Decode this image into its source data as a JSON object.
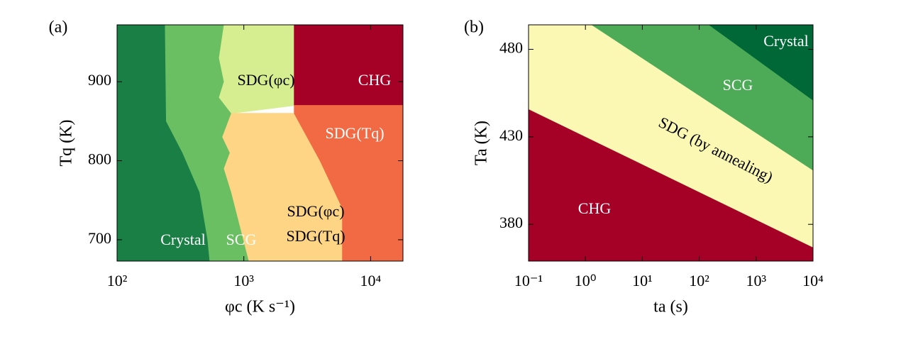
{
  "chart_data": [
    {
      "type": "area",
      "panel_label": "(a)",
      "xlabel": "φc (K s⁻¹)",
      "ylabel": "Tq (K)",
      "xscale": "log",
      "xlim": [
        100,
        18000
      ],
      "ylim": [
        673,
        972
      ],
      "xticks": [
        {
          "value": 100,
          "label": "10²"
        },
        {
          "value": 1000,
          "label": "10³"
        },
        {
          "value": 10000,
          "label": "10⁴"
        }
      ],
      "yticks": [
        700,
        800,
        900
      ],
      "regions": [
        {
          "color": "#1a7f45",
          "x": [
            100,
            100,
            240,
            245,
            330,
            450,
            520,
            540
          ],
          "y": [
            673,
            972,
            972,
            850,
            810,
            760,
            700,
            673
          ]
        },
        {
          "color": "#6abf62",
          "x": [
            540,
            520,
            450,
            330,
            245,
            240,
            700,
            640,
            700,
            640,
            800,
            680,
            780,
            700,
            800,
            1100
          ],
          "y": [
            673,
            700,
            760,
            810,
            850,
            972,
            972,
            930,
            900,
            880,
            860,
            830,
            810,
            790,
            760,
            673
          ]
        },
        {
          "color": "#d6ee8f",
          "x": [
            700,
            2500,
            2500,
            800,
            640,
            700,
            640
          ],
          "y": [
            972,
            972,
            870,
            860,
            880,
            900,
            930
          ]
        },
        {
          "color": "#fdd585",
          "x": [
            800,
            2500,
            4000,
            6000,
            6000,
            1100,
            800,
            700,
            780,
            680
          ],
          "y": [
            860,
            860,
            800,
            740,
            673,
            673,
            760,
            790,
            810,
            830
          ]
        },
        {
          "color": "#a50026",
          "x": [
            2500,
            18000,
            18000,
            2500
          ],
          "y": [
            972,
            972,
            870,
            870
          ]
        },
        {
          "color": "#f26a43",
          "x": [
            2500,
            18000,
            18000,
            6000,
            6000,
            4000,
            2500
          ],
          "y": [
            870,
            870,
            673,
            673,
            740,
            800,
            860
          ]
        }
      ],
      "annotations": [
        "SDG(φc)",
        "CHG",
        "SDG(Tq)",
        "SDG(φc)",
        "SDG(Tq)",
        "Crystal",
        "SCG"
      ]
    },
    {
      "type": "area",
      "panel_label": "(b)",
      "xlabel": "ta (s)",
      "ylabel": "Ta (K)",
      "xscale": "log",
      "xlim": [
        0.1,
        10000
      ],
      "ylim": [
        359,
        494
      ],
      "xticks": [
        {
          "value": 0.1,
          "label": "10⁻¹"
        },
        {
          "value": 1,
          "label": "10⁰"
        },
        {
          "value": 10,
          "label": "10¹"
        },
        {
          "value": 100,
          "label": "10²"
        },
        {
          "value": 1000,
          "label": "10³"
        },
        {
          "value": 10000,
          "label": "10⁴"
        }
      ],
      "yticks": [
        380,
        430,
        480
      ],
      "regions": [
        {
          "color": "#a50026",
          "x": [
            0.1,
            0.1,
            10000,
            10000
          ],
          "y": [
            359,
            446,
            367,
            359
          ]
        },
        {
          "color": "#fbf8b4",
          "x": [
            0.1,
            0.1,
            1.3,
            10000,
            10000
          ],
          "y": [
            446,
            494,
            494,
            411,
            367
          ]
        },
        {
          "color": "#4dab58",
          "x": [
            1.3,
            150,
            10000,
            10000
          ],
          "y": [
            494,
            494,
            451,
            411
          ]
        },
        {
          "color": "#006837",
          "x": [
            150,
            10000,
            10000
          ],
          "y": [
            494,
            494,
            451
          ]
        }
      ],
      "annotations": [
        "Crystal",
        "SCG",
        "SDG (by annealing)",
        "CHG"
      ]
    }
  ]
}
